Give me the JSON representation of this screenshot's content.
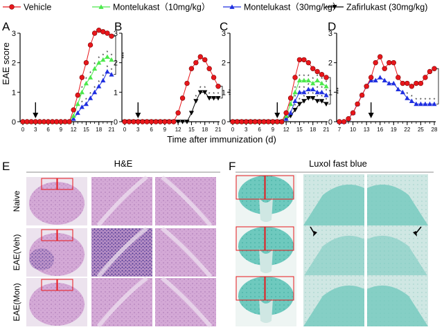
{
  "legend": [
    {
      "label": "Vehicle",
      "color": "#e8161b",
      "marker": "circle"
    },
    {
      "label": "Montelukast（10mg/kg）",
      "color": "#4be84b",
      "marker": "triangle-up"
    },
    {
      "label": "Montelukast（30mg/kg）",
      "color": "#1f2fe0",
      "marker": "triangle-up"
    },
    {
      "label": "Zafirlukast (30mg/kg)",
      "color": "#000000",
      "marker": "triangle-down"
    }
  ],
  "panel_labels": {
    "A": "A",
    "B": "B",
    "C": "C",
    "D": "D",
    "E": "E",
    "F": "F"
  },
  "y_axis_label": "EAE score",
  "x_axis_label": "Time after immunization (d)",
  "significance": "***",
  "star": "*",
  "chart_data": [
    {
      "panel": "A",
      "type": "line",
      "x": [
        0,
        1,
        2,
        3,
        4,
        5,
        6,
        7,
        8,
        9,
        10,
        11,
        12,
        13,
        14,
        15,
        16,
        17,
        18,
        19,
        20,
        21
      ],
      "xticks": [
        0,
        3,
        6,
        9,
        12,
        15,
        18,
        21
      ],
      "ylim": [
        0,
        3
      ],
      "yticks": [
        0,
        1,
        2,
        3
      ],
      "arrow_day": 3,
      "series": [
        {
          "legend_index": 0,
          "values": [
            0,
            0,
            0,
            0,
            0,
            0,
            0,
            0,
            0,
            0,
            0,
            0,
            0.4,
            0.9,
            1.5,
            2.0,
            2.6,
            3.0,
            3.1,
            3.05,
            3.0,
            2.9
          ]
        },
        {
          "legend_index": 1,
          "values": [
            0,
            0,
            0,
            0,
            0,
            0,
            0,
            0,
            0,
            0,
            0,
            0,
            0.2,
            0.6,
            1.0,
            1.3,
            1.5,
            1.8,
            2.0,
            2.1,
            2.2,
            2.1
          ]
        },
        {
          "legend_index": 2,
          "values": [
            0,
            0,
            0,
            0,
            0,
            0,
            0,
            0,
            0,
            0,
            0,
            0,
            0.1,
            0.3,
            0.5,
            0.6,
            0.8,
            1.0,
            1.2,
            1.4,
            1.7,
            1.6
          ]
        }
      ]
    },
    {
      "panel": "B",
      "type": "line",
      "x": [
        0,
        1,
        2,
        3,
        4,
        5,
        6,
        7,
        8,
        9,
        10,
        11,
        12,
        13,
        14,
        15,
        16,
        17,
        18,
        19,
        20,
        21
      ],
      "xticks": [
        0,
        3,
        6,
        9,
        12,
        15,
        18,
        21
      ],
      "ylim": [
        0,
        3
      ],
      "yticks": [
        0,
        1,
        2,
        3
      ],
      "arrow_day": 3,
      "series": [
        {
          "legend_index": 0,
          "values": [
            0,
            0,
            0,
            0,
            0,
            0,
            0,
            0,
            0,
            0,
            0,
            0,
            0.3,
            0.8,
            1.3,
            1.8,
            2.0,
            2.2,
            2.1,
            1.8,
            1.5,
            1.2
          ]
        },
        {
          "legend_index": 3,
          "values": [
            0,
            0,
            0,
            0,
            0,
            0,
            0,
            0,
            0,
            0,
            0,
            0,
            0,
            0,
            0,
            0.3,
            0.7,
            1.0,
            1.0,
            0.8,
            0.8,
            0.8
          ]
        }
      ]
    },
    {
      "panel": "C",
      "type": "line",
      "x": [
        0,
        1,
        2,
        3,
        4,
        5,
        6,
        7,
        8,
        9,
        10,
        11,
        12,
        13,
        14,
        15,
        16,
        17,
        18,
        19,
        20,
        21
      ],
      "xticks": [
        0,
        3,
        6,
        9,
        12,
        15,
        18,
        21
      ],
      "ylim": [
        0,
        3
      ],
      "yticks": [
        0,
        1,
        2,
        3
      ],
      "arrow_day": 10,
      "series": [
        {
          "legend_index": 0,
          "values": [
            0,
            0,
            0,
            0,
            0,
            0,
            0,
            0,
            0,
            0,
            0,
            0,
            0.3,
            0.8,
            1.5,
            2.1,
            2.1,
            2.0,
            1.8,
            1.7,
            1.6,
            1.5
          ]
        },
        {
          "legend_index": 1,
          "values": [
            0,
            0,
            0,
            0,
            0,
            0,
            0,
            0,
            0,
            0,
            0,
            0,
            0.2,
            0.6,
            1.0,
            1.4,
            1.4,
            1.4,
            1.3,
            1.4,
            1.3,
            1.2
          ]
        },
        {
          "legend_index": 2,
          "values": [
            0,
            0,
            0,
            0,
            0,
            0,
            0,
            0,
            0,
            0,
            0,
            0,
            0.1,
            0.3,
            0.7,
            1.0,
            1.0,
            1.1,
            1.1,
            1.0,
            1.0,
            0.9
          ]
        },
        {
          "legend_index": 3,
          "values": [
            0,
            0,
            0,
            0,
            0,
            0,
            0,
            0,
            0,
            0,
            0,
            0,
            0.1,
            0.2,
            0.4,
            0.6,
            0.7,
            0.8,
            0.8,
            0.7,
            0.7,
            0.6
          ]
        }
      ]
    },
    {
      "panel": "D",
      "type": "line",
      "x": [
        7,
        8,
        9,
        10,
        11,
        12,
        13,
        14,
        15,
        16,
        17,
        18,
        19,
        20,
        21,
        22,
        23,
        24,
        25,
        26,
        27,
        28
      ],
      "xticks": [
        7,
        10,
        13,
        16,
        19,
        22,
        25,
        28
      ],
      "ylim": [
        0,
        3
      ],
      "yticks": [
        0,
        1,
        2,
        3
      ],
      "arrow_day": 14,
      "series": [
        {
          "legend_index": 0,
          "values": [
            0,
            0,
            0.1,
            0.3,
            0.6,
            0.9,
            1.2,
            1.5,
            2.0,
            2.2,
            1.8,
            2.0,
            2.0,
            1.5,
            1.3,
            1.3,
            1.2,
            1.3,
            1.3,
            1.5,
            1.7,
            1.8
          ]
        },
        {
          "legend_index": 2,
          "values": [
            0,
            0,
            0.1,
            0.3,
            0.6,
            0.9,
            1.2,
            1.4,
            1.4,
            1.5,
            1.4,
            1.3,
            1.3,
            1.1,
            1.0,
            0.8,
            0.7,
            0.6,
            0.6,
            0.6,
            0.6,
            0.6
          ]
        }
      ]
    }
  ],
  "histology": {
    "he_title": "H&E",
    "lfb_title": "Luxol fast blue",
    "rows": [
      "Naive",
      "EAE(Veh)",
      "EAE(Mon)"
    ],
    "he_color": "#c493c4",
    "he_infiltrate_color": "#5a3e94",
    "lfb_color": "#3fb3a6",
    "zoom_box_color": "#e8161b"
  }
}
